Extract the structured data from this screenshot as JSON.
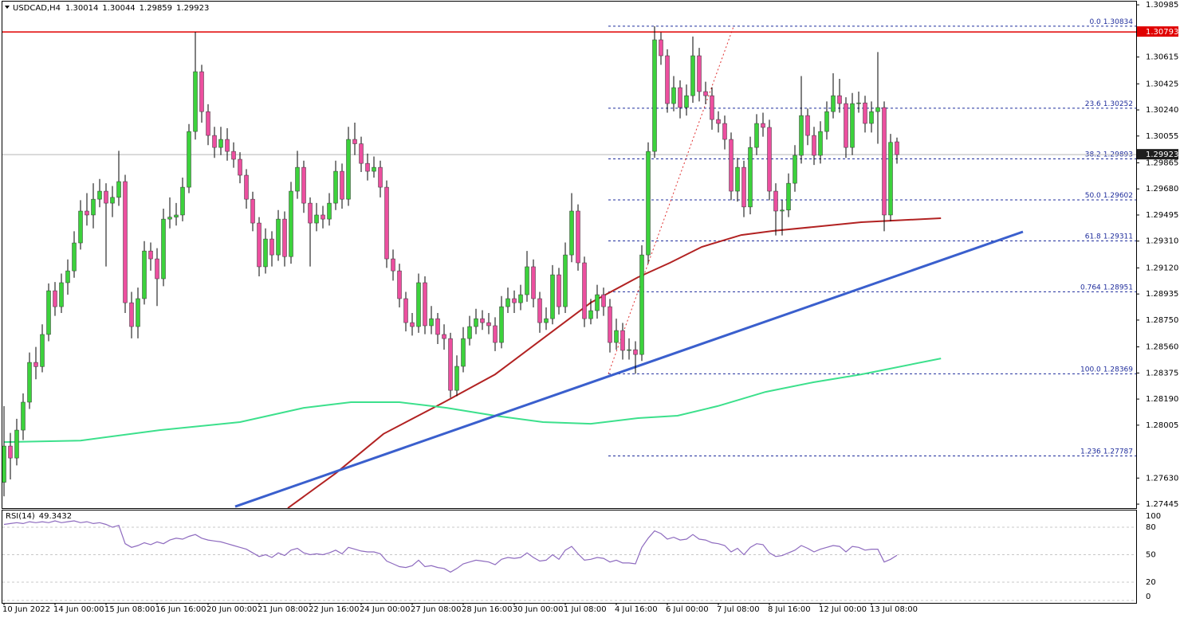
{
  "chart_data": {
    "type": "candlestick",
    "symbol": "USDCAD,H4",
    "categories": [
      "10 Jun 2022",
      null,
      null,
      null,
      null,
      null,
      null,
      null,
      "14 Jun 00:00",
      null,
      null,
      null,
      null,
      null,
      null,
      null,
      "15 Jun 08:00",
      null,
      null,
      null,
      null,
      null,
      null,
      null,
      "16 Jun 16:00",
      null,
      null,
      null,
      null,
      null,
      null,
      null,
      "20 Jun 00:00",
      null,
      null,
      null,
      null,
      null,
      null,
      null,
      "21 Jun 08:00",
      null,
      null,
      null,
      null,
      null,
      null,
      null,
      "22 Jun 16:00",
      null,
      null,
      null,
      null,
      null,
      null,
      null,
      "24 Jun 00:00",
      null,
      null,
      null,
      null,
      null,
      null,
      null,
      "27 Jun 08:00",
      null,
      null,
      null,
      null,
      null,
      null,
      null,
      "28 Jun 16:00",
      null,
      null,
      null,
      null,
      null,
      null,
      null,
      "30 Jun 00:00",
      null,
      null,
      null,
      null,
      null,
      null,
      null,
      "1 Jul 08:00",
      null,
      null,
      null,
      null,
      null,
      null,
      null,
      "4 Jul 16:00",
      null,
      null,
      null,
      null,
      null,
      null,
      null,
      "6 Jul 00:00",
      null,
      null,
      null,
      null,
      null,
      null,
      null,
      "7 Jul 08:00",
      null,
      null,
      null,
      null,
      null,
      null,
      null,
      "8 Jul 16:00",
      null,
      null,
      null,
      null,
      null,
      null,
      null,
      "12 Jul 00:00",
      null,
      null,
      null,
      null,
      null,
      null,
      null,
      "13 Jul 08:00",
      null,
      null,
      null,
      null
    ],
    "open": [
      1.276,
      1.27857,
      1.27772,
      1.2797,
      1.28168,
      1.2845,
      1.2842,
      1.28648,
      1.28958,
      1.28845,
      1.29015,
      1.29099,
      1.29297,
      1.29523,
      1.29495,
      1.29607,
      1.29664,
      1.29579,
      1.2962,
      1.29732,
      1.28873,
      1.28704,
      1.28902,
      1.2924,
      1.29184,
      1.29043,
      1.29466,
      1.2948,
      1.29495,
      1.29692,
      1.30087,
      1.30511,
      1.30228,
      1.30059,
      1.29974,
      1.30031,
      1.29946,
      1.2989,
      1.29777,
      1.29607,
      1.29438,
      1.29128,
      1.29325,
      1.29212,
      1.29466,
      1.292,
      1.29664,
      1.29833,
      1.29579,
      1.29438,
      1.29495,
      1.29466,
      1.29579,
      1.29805,
      1.29607,
      1.30031,
      1.3,
      1.29861,
      1.29805,
      1.29833,
      1.29692,
      1.29184,
      1.29099,
      1.28902,
      1.28732,
      1.28704,
      1.29015,
      1.2871,
      1.2876,
      1.28648,
      1.28619,
      1.28252,
      1.28422,
      1.28619,
      1.28704,
      1.2876,
      1.28732,
      1.2871,
      1.28591,
      1.28845,
      1.28902,
      1.28873,
      1.2893,
      1.29128,
      1.28902,
      1.28732,
      1.2876,
      1.29071,
      1.28845,
      1.29212,
      1.29523,
      1.29156,
      1.2876,
      1.28817,
      1.2893,
      1.28845,
      1.28591,
      1.28676,
      1.28535,
      1.2854,
      1.28506,
      1.29212,
      1.29946,
      1.30737,
      1.30624,
      1.30285,
      1.30398,
      1.30257,
      1.30341,
      1.30624,
      1.3037,
      1.30341,
      1.30172,
      1.30144,
      1.30031,
      1.29664,
      1.29833,
      1.29552,
      1.29974,
      1.30144,
      1.30116,
      1.29664,
      1.29523,
      1.2953,
      1.2972,
      1.29918,
      1.302,
      1.30059,
      1.29918,
      1.30087,
      1.30228,
      1.30341,
      1.30285,
      1.29974,
      1.30285,
      1.3029,
      1.30144,
      1.30228,
      1.30257,
      1.29495,
      1.30014
    ],
    "high": [
      1.2814,
      1.2795,
      1.2805,
      1.2823,
      1.2852,
      1.2856,
      1.2872,
      1.2901,
      1.2902,
      1.2908,
      1.2918,
      1.2938,
      1.296,
      1.2965,
      1.2972,
      1.2975,
      1.2972,
      1.297,
      1.2995,
      1.2978,
      1.2895,
      1.2898,
      1.2931,
      1.293,
      1.2926,
      1.2954,
      1.2962,
      1.2958,
      1.2976,
      1.3014,
      1.30793,
      1.3056,
      1.3028,
      1.3012,
      1.3012,
      1.3011,
      1.3001,
      1.2994,
      1.2982,
      1.2966,
      1.2948,
      1.294,
      1.2938,
      1.2953,
      1.2952,
      1.2973,
      1.2995,
      1.2988,
      1.2962,
      1.2958,
      1.2956,
      1.2965,
      1.2988,
      1.2986,
      1.3012,
      1.3015,
      1.3005,
      1.2993,
      1.2991,
      1.2988,
      1.2974,
      1.2925,
      1.2915,
      1.2895,
      1.288,
      1.2908,
      1.2906,
      1.2885,
      1.288,
      1.2872,
      1.2866,
      1.285,
      1.287,
      1.2878,
      1.2883,
      1.2882,
      1.288,
      1.2877,
      1.2892,
      1.2898,
      1.2896,
      1.29,
      1.2924,
      1.2918,
      1.2895,
      1.2884,
      1.2914,
      1.2912,
      1.293,
      1.2965,
      1.2957,
      1.292,
      1.289,
      1.29,
      1.2898,
      1.289,
      1.2876,
      1.2873,
      1.2862,
      1.286,
      1.2928,
      1.3001,
      1.30834,
      1.3079,
      1.3067,
      1.3048,
      1.3045,
      1.3042,
      1.3076,
      1.3068,
      1.3044,
      1.304,
      1.3023,
      1.302,
      1.3008,
      1.299,
      1.2988,
      1.3005,
      1.3021,
      1.3022,
      1.3017,
      1.2972,
      1.296,
      1.2979,
      1.2999,
      1.3048,
      1.3025,
      1.3012,
      1.3016,
      1.303,
      1.305,
      1.3046,
      1.3033,
      1.3036,
      1.3037,
      1.3034,
      1.303,
      1.3065,
      1.303,
      1.3007,
      1.30044
    ],
    "low": [
      1.275,
      1.2762,
      1.2772,
      1.279,
      1.2812,
      1.2833,
      1.2838,
      1.286,
      1.2878,
      1.288,
      1.2893,
      1.2905,
      1.2925,
      1.2942,
      1.294,
      1.2955,
      1.2913,
      1.2948,
      1.2956,
      1.288,
      1.2862,
      1.2862,
      1.2886,
      1.291,
      1.2885,
      1.2899,
      1.294,
      1.2942,
      1.2945,
      1.2965,
      1.3003,
      1.3015,
      1.2999,
      1.299,
      1.2992,
      1.2988,
      1.2983,
      1.2972,
      1.2954,
      1.2938,
      1.2906,
      1.2908,
      1.2913,
      1.2917,
      1.2913,
      1.2915,
      1.2961,
      1.2951,
      1.2913,
      1.2938,
      1.294,
      1.2942,
      1.2953,
      1.2954,
      1.2956,
      1.2992,
      1.298,
      1.2974,
      1.2976,
      1.2962,
      1.2912,
      1.2903,
      1.2884,
      1.2867,
      1.2864,
      1.2866,
      1.2865,
      1.2865,
      1.2858,
      1.2854,
      1.282,
      1.2821,
      1.2838,
      1.2857,
      1.2865,
      1.2868,
      1.2865,
      1.2853,
      1.2855,
      1.288,
      1.288,
      1.2882,
      1.2888,
      1.2884,
      1.2866,
      1.2868,
      1.2872,
      1.2879,
      1.288,
      1.2916,
      1.291,
      1.287,
      1.2872,
      1.2876,
      1.2878,
      1.2852,
      1.2854,
      1.2847,
      1.2847,
      1.28369,
      1.2846,
      1.2915,
      1.299,
      1.3056,
      1.3022,
      1.3023,
      1.3018,
      1.302,
      1.3029,
      1.303,
      1.3028,
      1.301,
      1.3008,
      1.2996,
      1.296,
      1.2959,
      1.2948,
      1.295,
      1.2992,
      1.3005,
      1.296,
      1.2935,
      1.2935,
      1.2948,
      1.2966,
      1.2986,
      1.2999,
      1.2985,
      1.2986,
      1.3003,
      1.3018,
      1.3022,
      1.299,
      1.2992,
      1.3022,
      1.3008,
      1.3008,
      1.3,
      1.2938,
      1.2945,
      1.29859
    ],
    "close": [
      1.27857,
      1.27772,
      1.2797,
      1.28168,
      1.2845,
      1.2842,
      1.28648,
      1.28958,
      1.28845,
      1.29015,
      1.29099,
      1.29297,
      1.29523,
      1.29495,
      1.29607,
      1.29664,
      1.29579,
      1.2962,
      1.29732,
      1.28873,
      1.28704,
      1.28902,
      1.2924,
      1.29184,
      1.29043,
      1.29466,
      1.2948,
      1.29495,
      1.29692,
      1.30087,
      1.30511,
      1.30228,
      1.30059,
      1.29974,
      1.30031,
      1.29946,
      1.2989,
      1.29777,
      1.29607,
      1.29438,
      1.29128,
      1.29325,
      1.29212,
      1.29466,
      1.292,
      1.29664,
      1.29833,
      1.29579,
      1.29438,
      1.29495,
      1.29466,
      1.29579,
      1.29805,
      1.29607,
      1.30031,
      1.3,
      1.29861,
      1.29805,
      1.29833,
      1.29692,
      1.29184,
      1.29099,
      1.28902,
      1.28732,
      1.28704,
      1.29015,
      1.2871,
      1.2876,
      1.28648,
      1.28619,
      1.28252,
      1.28422,
      1.28619,
      1.28704,
      1.2876,
      1.28732,
      1.2871,
      1.28591,
      1.28845,
      1.28902,
      1.28873,
      1.2893,
      1.29128,
      1.28902,
      1.28732,
      1.2876,
      1.29071,
      1.28845,
      1.29212,
      1.29523,
      1.29156,
      1.2876,
      1.28817,
      1.2893,
      1.28845,
      1.28591,
      1.28676,
      1.28535,
      1.2854,
      1.28506,
      1.29212,
      1.29946,
      1.30737,
      1.30624,
      1.30285,
      1.30398,
      1.30257,
      1.30341,
      1.30624,
      1.3037,
      1.30341,
      1.30172,
      1.30144,
      1.30031,
      1.29664,
      1.29833,
      1.29552,
      1.29974,
      1.30144,
      1.30116,
      1.29664,
      1.29523,
      1.2953,
      1.2972,
      1.29918,
      1.302,
      1.30059,
      1.29918,
      1.30087,
      1.30228,
      1.30341,
      1.30285,
      1.29974,
      1.30285,
      1.3029,
      1.30144,
      1.30228,
      1.30257,
      1.29495,
      1.3001,
      1.29923
    ],
    "up_color": "#3cd23c",
    "down_color": "#ec4f9f",
    "wick_color": "#000000",
    "ylim": [
      1.27417,
      1.31008
    ],
    "yticks": [
      1.30985,
      1.30615,
      1.30425,
      {
        "value": 1.3024,
        "label": "1.30240"
      },
      1.30055,
      1.29865,
      {
        "value": 1.2968,
        "label": "1.29680"
      },
      1.29495,
      {
        "value": 1.2931,
        "label": "1.29310"
      },
      {
        "value": 1.2912,
        "label": "1.29120"
      },
      1.28935,
      {
        "value": 1.2875,
        "label": "1.28750"
      },
      {
        "value": 1.2856,
        "label": "1.28560"
      },
      1.28375,
      {
        "value": 1.2819,
        "label": "1.28190"
      },
      1.28005,
      {
        "value": 1.2763,
        "label": "1.27630"
      },
      1.27445
    ],
    "resistance": {
      "value": 1.30793,
      "color": "#e00000"
    },
    "price_line_color": "#b8b8b8",
    "fibonacci": {
      "color": "#1f2d9c",
      "diagonal_color": "#e03030",
      "x_from": 94.75,
      "x_to": 114.4,
      "levels": [
        {
          "ratio": "0.0",
          "value": 1.30834
        },
        {
          "ratio": "23.6",
          "value": 1.30252
        },
        {
          "ratio": "38.2",
          "value": 1.29893
        },
        {
          "ratio": "50.0",
          "value": 1.29602
        },
        {
          "ratio": "61.8",
          "value": 1.29311
        },
        {
          "ratio": "0.764",
          "value": 1.28951
        },
        {
          "ratio": "100.0",
          "value": 1.28369
        },
        {
          "ratio": "1.236",
          "value": 1.27787
        }
      ]
    },
    "moving_averages": [
      {
        "color": "#b22222",
        "x": [
          44.5,
          52,
          59.5,
          69,
          77,
          84.5,
          92,
          99.4,
          104.4,
          109.4,
          115.6,
          120.5,
          126.9,
          134.4,
          146.9
        ],
        "values": [
          1.27417,
          1.27664,
          1.27943,
          1.28168,
          1.28365,
          1.28619,
          1.28874,
          1.29054,
          1.29156,
          1.29269,
          1.29353,
          1.29382,
          1.2941,
          1.29444,
          1.29472
        ]
      },
      {
        "color": "#3ce08c",
        "x": [
          0,
          12,
          24.4,
          37,
          47,
          54.4,
          62,
          69.4,
          77,
          84.5,
          92,
          99.4,
          105.6,
          111.9,
          119.4,
          126.9,
          134.4,
          146.9
        ],
        "values": [
          1.27885,
          1.27896,
          1.2797,
          1.28027,
          1.28128,
          1.28168,
          1.28168,
          1.28128,
          1.28072,
          1.28027,
          1.28015,
          1.28055,
          1.28072,
          1.2814,
          1.28241,
          1.28309,
          1.28365,
          1.28478
        ]
      }
    ],
    "trendline": {
      "color": "#3a5fcd",
      "x": [
        36.25,
        159.75
      ],
      "values": [
        1.27428,
        1.29376
      ]
    },
    "rsi": {
      "label": "RSI(14)",
      "color": "#8e6bbf",
      "ylim": [
        0,
        100
      ],
      "yticks": [
        100,
        80,
        50,
        20,
        0
      ],
      "values": [
        83,
        84,
        85,
        84,
        86,
        85,
        86,
        85,
        87,
        85,
        86,
        87,
        85,
        86,
        84,
        85,
        83,
        80,
        82,
        62,
        58,
        60,
        63,
        61,
        64,
        62,
        66,
        68,
        67,
        70,
        72,
        68,
        66,
        65,
        64,
        62,
        60,
        58,
        56,
        52,
        48,
        50,
        47,
        52,
        49,
        55,
        57,
        52,
        50,
        51,
        50,
        52,
        55,
        51,
        58,
        56,
        54,
        53,
        53,
        51,
        43,
        40,
        37,
        36,
        38,
        44,
        37,
        38,
        36,
        35,
        31,
        35,
        40,
        42,
        44,
        43,
        42,
        39,
        45,
        47,
        46,
        47,
        52,
        47,
        43,
        44,
        50,
        45,
        55,
        59,
        51,
        44,
        45,
        47,
        46,
        42,
        44,
        41,
        41,
        40,
        58,
        68,
        76,
        73,
        67,
        69,
        66,
        67,
        72,
        67,
        66,
        63,
        62,
        60,
        53,
        57,
        50,
        58,
        62,
        61,
        52,
        48,
        49,
        52,
        55,
        60,
        57,
        53,
        56,
        58,
        60,
        59,
        53,
        59,
        58,
        55,
        56,
        56,
        42,
        45,
        49.3432
      ]
    }
  }
}
